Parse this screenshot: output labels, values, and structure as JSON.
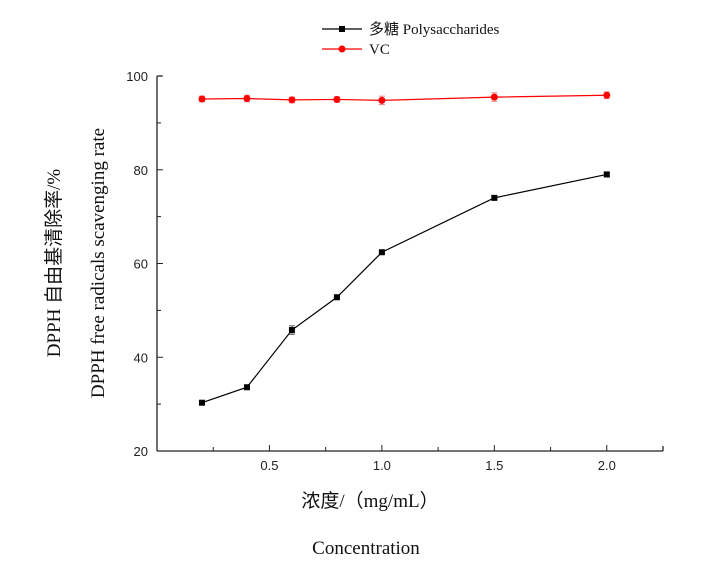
{
  "chart_data": {
    "type": "line",
    "title": "",
    "xlabel": "浓度/（mg/mL）",
    "xlabel_en": "Concentration",
    "ylabel_cn": "DPPH 自由基清除率/%",
    "ylabel_en": "DPPH free radicals scavenging rate",
    "xlim": [
      0,
      2.25
    ],
    "ylim": [
      20,
      100
    ],
    "xticks": [
      0.5,
      1.0,
      1.5,
      2.0
    ],
    "xtick_labels": [
      "0.5",
      "1.0",
      "1.5",
      "2.0"
    ],
    "yticks": [
      20,
      40,
      60,
      80,
      100
    ],
    "ytick_labels": [
      "20",
      "40",
      "60",
      "80",
      "100"
    ],
    "legend_position": "top-center",
    "grid": false,
    "x": [
      0.2,
      0.4,
      0.6,
      0.8,
      1.0,
      1.5,
      2.0
    ],
    "series": [
      {
        "name": "多糖 Polysaccharides",
        "color": "#000000",
        "marker": "square",
        "values": [
          30.3,
          33.6,
          45.8,
          52.8,
          62.4,
          74.0,
          79.0
        ],
        "errors": [
          0.3,
          0.3,
          0.9,
          0.3,
          0.3,
          0.3,
          0.5
        ]
      },
      {
        "name": "VC",
        "color": "#ff0000",
        "marker": "circle",
        "values": [
          95.1,
          95.2,
          94.9,
          95.0,
          94.8,
          95.5,
          95.9
        ],
        "errors": [
          0.6,
          0.7,
          0.6,
          0.6,
          0.9,
          0.9,
          0.7
        ]
      }
    ]
  }
}
